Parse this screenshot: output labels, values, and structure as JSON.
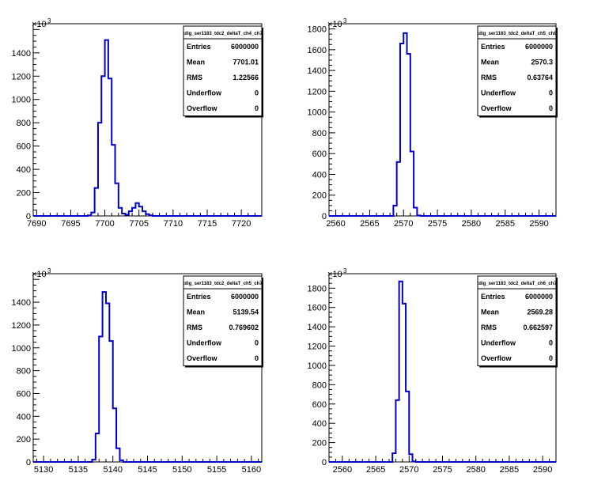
{
  "chart_data": [
    {
      "type": "histogram",
      "title": "tdig_ser1183_tdc2_deltaT_ch4_ch7",
      "y_multiplier": "×10",
      "y_multiplier_exp": "3",
      "xlim": [
        7689.5,
        7723
      ],
      "ylim": [
        0,
        1650
      ],
      "x_ticks": [
        7690,
        7695,
        7700,
        7705,
        7710,
        7715,
        7720
      ],
      "y_ticks": [
        0,
        200,
        400,
        600,
        800,
        1000,
        1200,
        1400
      ],
      "bin_width": 0.5,
      "bins": [
        [
          7697.5,
          5
        ],
        [
          7698,
          30
        ],
        [
          7698.5,
          240
        ],
        [
          7699,
          800
        ],
        [
          7699.5,
          1200
        ],
        [
          7700,
          1510
        ],
        [
          7700.5,
          1180
        ],
        [
          7701,
          610
        ],
        [
          7701.5,
          280
        ],
        [
          7702,
          70
        ],
        [
          7702.5,
          20
        ],
        [
          7703,
          10
        ],
        [
          7703.5,
          40
        ],
        [
          7704,
          70
        ],
        [
          7704.5,
          110
        ],
        [
          7705,
          80
        ],
        [
          7705.5,
          40
        ],
        [
          7706,
          15
        ],
        [
          7706.5,
          5
        ]
      ],
      "stats": [
        {
          "label": "Entries",
          "value": "6000000"
        },
        {
          "label": "Mean",
          "value": "7701.01"
        },
        {
          "label": "RMS",
          "value": "1.22566"
        },
        {
          "label": "Underflow",
          "value": "0"
        },
        {
          "label": "Overflow",
          "value": "0"
        }
      ]
    },
    {
      "type": "histogram",
      "title": "tdig_ser1183_tdc2_deltaT_ch5_ch8",
      "y_multiplier": "×10",
      "y_multiplier_exp": "3",
      "xlim": [
        2559,
        2592.5
      ],
      "ylim": [
        0,
        1850
      ],
      "x_ticks": [
        2560,
        2565,
        2570,
        2575,
        2580,
        2585,
        2590
      ],
      "y_ticks": [
        0,
        200,
        400,
        600,
        800,
        1000,
        1200,
        1400,
        1600,
        1800
      ],
      "bin_width": 0.5,
      "bins": [
        [
          2568.5,
          100
        ],
        [
          2569,
          520
        ],
        [
          2569.5,
          1660
        ],
        [
          2570,
          1760
        ],
        [
          2570.5,
          1560
        ],
        [
          2571,
          620
        ],
        [
          2571.5,
          80
        ],
        [
          2572,
          5
        ]
      ],
      "stats": [
        {
          "label": "Entries",
          "value": "6000000"
        },
        {
          "label": "Mean",
          "value": "2570.3"
        },
        {
          "label": "RMS",
          "value": "0.63764"
        },
        {
          "label": "Underflow",
          "value": "0"
        },
        {
          "label": "Overflow",
          "value": "0"
        }
      ]
    },
    {
      "type": "histogram",
      "title": "tdig_ser1183_tdc2_deltaT_ch5_ch7",
      "y_multiplier": "×10",
      "y_multiplier_exp": "3",
      "xlim": [
        5128.5,
        5161.5
      ],
      "ylim": [
        0,
        1650
      ],
      "x_ticks": [
        5130,
        5135,
        5140,
        5145,
        5150,
        5155,
        5160
      ],
      "y_ticks": [
        0,
        200,
        400,
        600,
        800,
        1000,
        1200,
        1400
      ],
      "bin_width": 0.5,
      "bins": [
        [
          5137,
          20
        ],
        [
          5137.5,
          250
        ],
        [
          5138,
          1100
        ],
        [
          5138.5,
          1490
        ],
        [
          5139,
          1390
        ],
        [
          5139.5,
          1060
        ],
        [
          5140,
          470
        ],
        [
          5140.5,
          120
        ],
        [
          5141,
          15
        ]
      ],
      "stats": [
        {
          "label": "Entries",
          "value": "6000000"
        },
        {
          "label": "Mean",
          "value": "5139.54"
        },
        {
          "label": "RMS",
          "value": "0.769602"
        },
        {
          "label": "Underflow",
          "value": "0"
        },
        {
          "label": "Overflow",
          "value": "0"
        }
      ]
    },
    {
      "type": "histogram",
      "title": "tdig_ser1183_tdc2_deltaT_ch6_ch7",
      "y_multiplier": "×10",
      "y_multiplier_exp": "3",
      "xlim": [
        2558,
        2592
      ],
      "ylim": [
        0,
        1950
      ],
      "x_ticks": [
        2560,
        2565,
        2570,
        2575,
        2580,
        2585,
        2590
      ],
      "y_ticks": [
        0,
        200,
        400,
        600,
        800,
        1000,
        1200,
        1400,
        1600,
        1800
      ],
      "bin_width": 0.5,
      "bins": [
        [
          2567.5,
          90
        ],
        [
          2568,
          640
        ],
        [
          2568.5,
          1870
        ],
        [
          2569,
          1640
        ],
        [
          2569.5,
          730
        ],
        [
          2570,
          80
        ],
        [
          2570.5,
          5
        ]
      ],
      "stats": [
        {
          "label": "Entries",
          "value": "6000000"
        },
        {
          "label": "Mean",
          "value": "2569.28"
        },
        {
          "label": "RMS",
          "value": "0.662597"
        },
        {
          "label": "Underflow",
          "value": "0"
        },
        {
          "label": "Overflow",
          "value": "0"
        }
      ]
    }
  ],
  "style": {
    "line_color": "#0000cc",
    "axis_color": "#000000"
  }
}
